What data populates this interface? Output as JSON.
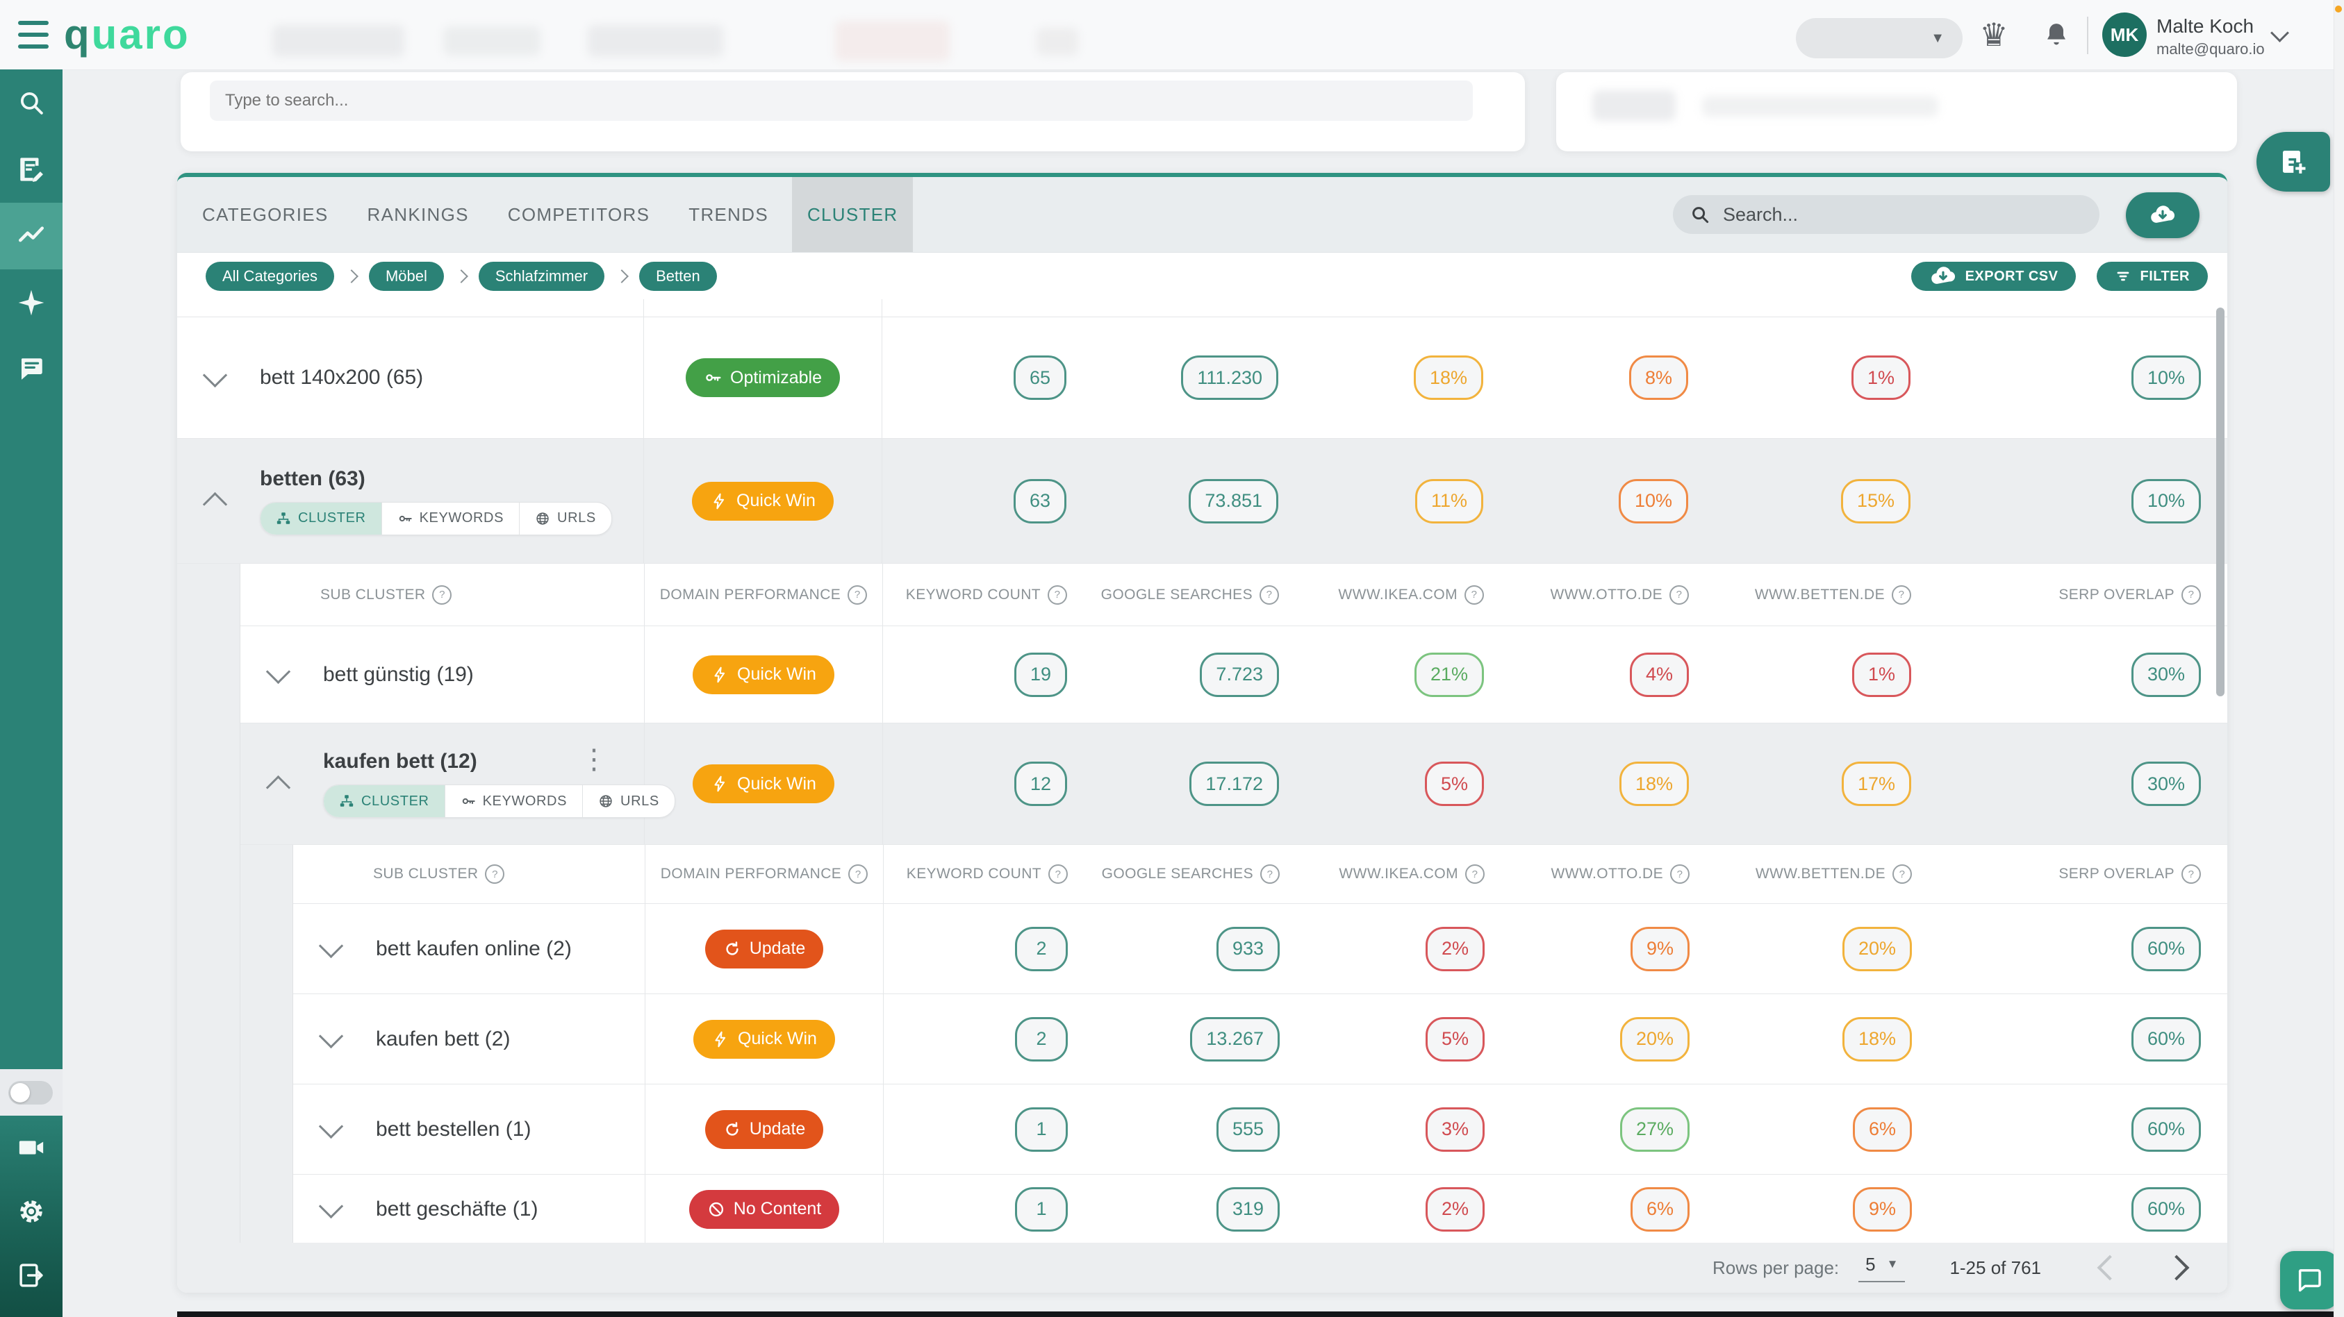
{
  "topbar": {
    "logo_q": "q",
    "logo_rest": "uaro",
    "user_initials": "MK",
    "user_name": "Malte Koch",
    "user_email": "malte@quaro.io"
  },
  "sidebar": {
    "top_items": [
      {
        "icon": "search-icon",
        "active": false
      },
      {
        "icon": "note-edit-icon",
        "active": false
      },
      {
        "icon": "trend-chart-icon",
        "active": true
      },
      {
        "icon": "sparkle-icon",
        "active": false
      },
      {
        "icon": "chat-icon",
        "active": false
      }
    ],
    "bottom_items": [
      {
        "icon": "videocam-icon"
      },
      {
        "icon": "gear-icon"
      },
      {
        "icon": "logout-icon"
      }
    ],
    "toggle_on": false
  },
  "toolbar_card": {
    "search_placeholder": "Type to search..."
  },
  "panel": {
    "tabs": [
      {
        "label": "CATEGORIES",
        "active": false
      },
      {
        "label": "RANKINGS",
        "active": false
      },
      {
        "label": "COMPETITORS",
        "active": false
      },
      {
        "label": "TRENDS",
        "active": false
      },
      {
        "label": "CLUSTER",
        "active": true
      }
    ],
    "search_placeholder": "Search...",
    "breadcrumbs": [
      "All Categories",
      "Möbel",
      "Schlafzimmer",
      "Betten"
    ],
    "export_label": "EXPORT CSV",
    "filter_label": "FILTER",
    "columns": [
      "SUB CLUSTER",
      "DOMAIN PERFORMANCE",
      "KEYWORD COUNT",
      "GOOGLE SEARCHES",
      "WWW.IKEA.COM",
      "WWW.OTTO.DE",
      "WWW.BETTEN.DE",
      "SERP OVERLAP"
    ],
    "toggle_labels": [
      "CLUSTER",
      "KEYWORDS",
      "URLS"
    ],
    "toggle_icons": [
      "cluster-icon",
      "key-icon",
      "globe-icon"
    ],
    "rows": [
      {
        "kind": "row",
        "level": 0,
        "shade": "white",
        "expanded": false,
        "name": "bett 140x200 (65)",
        "badge": {
          "label": "Optimizable",
          "style": "green",
          "icon": "key-icon"
        },
        "values": [
          {
            "text": "65",
            "style": "teal"
          },
          {
            "text": "111.230",
            "style": "teal"
          },
          {
            "text": "18%",
            "style": "amber"
          },
          {
            "text": "8%",
            "style": "orange"
          },
          {
            "text": "1%",
            "style": "red"
          },
          {
            "text": "10%",
            "style": "teal"
          }
        ]
      },
      {
        "kind": "row",
        "level": 0,
        "shade": "grey",
        "expanded": true,
        "name": "betten (63)",
        "toggles": true,
        "badge": {
          "label": "Quick Win",
          "style": "amber",
          "icon": "bolt-icon"
        },
        "values": [
          {
            "text": "63",
            "style": "teal"
          },
          {
            "text": "73.851",
            "style": "teal"
          },
          {
            "text": "11%",
            "style": "amber"
          },
          {
            "text": "10%",
            "style": "orange"
          },
          {
            "text": "15%",
            "style": "amber"
          },
          {
            "text": "10%",
            "style": "teal"
          }
        ]
      },
      {
        "kind": "subheader",
        "level": 1
      },
      {
        "kind": "row",
        "level": 1,
        "shade": "white",
        "expanded": false,
        "name": "bett günstig (19)",
        "badge": {
          "label": "Quick Win",
          "style": "amber",
          "icon": "bolt-icon"
        },
        "values": [
          {
            "text": "19",
            "style": "teal"
          },
          {
            "text": "7.723",
            "style": "teal"
          },
          {
            "text": "21%",
            "style": "green"
          },
          {
            "text": "4%",
            "style": "red"
          },
          {
            "text": "1%",
            "style": "red"
          },
          {
            "text": "30%",
            "style": "teal"
          }
        ]
      },
      {
        "kind": "row",
        "level": 1,
        "shade": "grey",
        "expanded": true,
        "name": "kaufen bett (12)",
        "toggles": true,
        "kebab": true,
        "badge": {
          "label": "Quick Win",
          "style": "amber",
          "icon": "bolt-icon"
        },
        "values": [
          {
            "text": "12",
            "style": "teal"
          },
          {
            "text": "17.172",
            "style": "teal"
          },
          {
            "text": "5%",
            "style": "red"
          },
          {
            "text": "18%",
            "style": "amber"
          },
          {
            "text": "17%",
            "style": "amber"
          },
          {
            "text": "30%",
            "style": "teal"
          }
        ]
      },
      {
        "kind": "subheader",
        "level": 2
      },
      {
        "kind": "row",
        "level": 2,
        "shade": "white",
        "expanded": false,
        "name": "bett kaufen online (2)",
        "badge": {
          "label": "Update",
          "style": "dorange",
          "icon": "refresh-icon"
        },
        "values": [
          {
            "text": "2",
            "style": "teal"
          },
          {
            "text": "933",
            "style": "teal"
          },
          {
            "text": "2%",
            "style": "red"
          },
          {
            "text": "9%",
            "style": "orange"
          },
          {
            "text": "20%",
            "style": "amber"
          },
          {
            "text": "60%",
            "style": "teal"
          }
        ]
      },
      {
        "kind": "row",
        "level": 2,
        "shade": "white",
        "expanded": false,
        "name": "kaufen bett (2)",
        "badge": {
          "label": "Quick Win",
          "style": "amber",
          "icon": "bolt-icon"
        },
        "values": [
          {
            "text": "2",
            "style": "teal"
          },
          {
            "text": "13.267",
            "style": "teal"
          },
          {
            "text": "5%",
            "style": "red"
          },
          {
            "text": "20%",
            "style": "amber"
          },
          {
            "text": "18%",
            "style": "amber"
          },
          {
            "text": "60%",
            "style": "teal"
          }
        ]
      },
      {
        "kind": "row",
        "level": 2,
        "shade": "white",
        "expanded": false,
        "name": "bett bestellen (1)",
        "badge": {
          "label": "Update",
          "style": "dorange",
          "icon": "refresh-icon"
        },
        "values": [
          {
            "text": "1",
            "style": "teal"
          },
          {
            "text": "555",
            "style": "teal"
          },
          {
            "text": "3%",
            "style": "red"
          },
          {
            "text": "27%",
            "style": "green"
          },
          {
            "text": "6%",
            "style": "orange"
          },
          {
            "text": "60%",
            "style": "teal"
          }
        ]
      },
      {
        "kind": "row",
        "level": 2,
        "shade": "white",
        "expanded": false,
        "name": "bett geschäfte (1)",
        "badge": {
          "label": "No Content",
          "style": "red",
          "icon": "no-content-icon"
        },
        "values": [
          {
            "text": "1",
            "style": "teal"
          },
          {
            "text": "319",
            "style": "teal"
          },
          {
            "text": "2%",
            "style": "red"
          },
          {
            "text": "6%",
            "style": "orange"
          },
          {
            "text": "9%",
            "style": "orange"
          },
          {
            "text": "60%",
            "style": "teal"
          }
        ]
      }
    ],
    "pagination": {
      "label": "Rows per page:",
      "value": "5",
      "range": "1-25 of 761"
    }
  },
  "colors": {
    "accent": "#2b8276",
    "logo_mint": "#3fd99c",
    "badge_green": "#43a047",
    "badge_amber": "#f7a410",
    "badge_dark_orange": "#e2541b",
    "badge_red": "#d43a3e",
    "pill_teal": "#4d9487",
    "pill_green": "#7cc47f",
    "pill_amber": "#f2b33d",
    "pill_orange": "#f08a45",
    "pill_red": "#d8575b"
  }
}
